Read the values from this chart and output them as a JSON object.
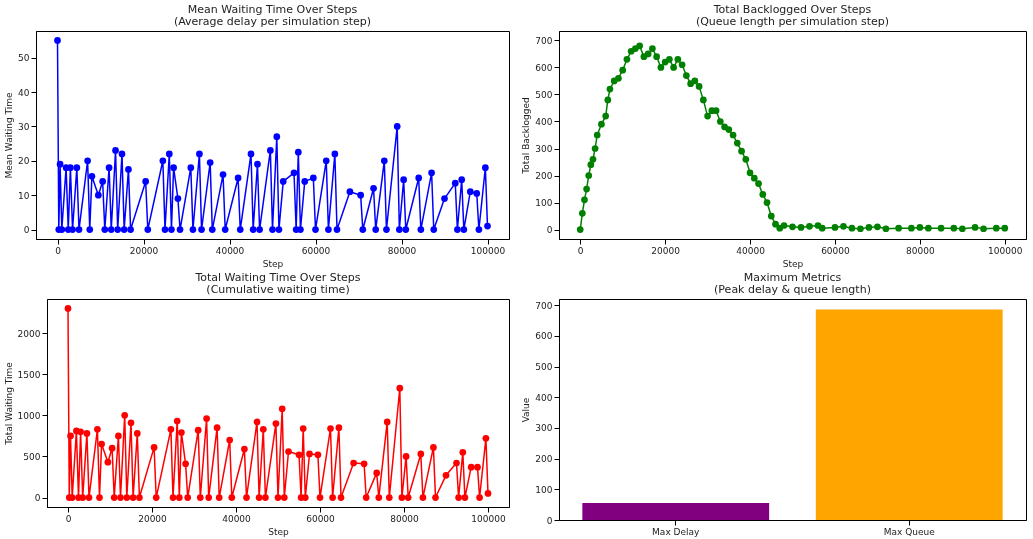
{
  "chart_data": [
    {
      "type": "line",
      "title": "Mean Waiting Time Over Steps",
      "subtitle": "(Average delay per simulation step)",
      "xlabel": "Step",
      "ylabel": "Mean Waiting Time",
      "color": "#0000ff",
      "marker": "circle",
      "line_style": "solid",
      "x": [
        0,
        300,
        600,
        1000,
        2000,
        2500,
        3000,
        3500,
        4500,
        5000,
        7000,
        7500,
        8000,
        9500,
        10500,
        11000,
        12000,
        12500,
        13500,
        14000,
        15000,
        15500,
        16500,
        17000,
        20500,
        21000,
        24500,
        25000,
        26000,
        26500,
        27000,
        28000,
        28500,
        31000,
        31500,
        33000,
        33500,
        35500,
        36000,
        38500,
        39000,
        42000,
        42500,
        45000,
        45500,
        46500,
        47000,
        49500,
        50000,
        51000,
        51500,
        52500,
        55000,
        55500,
        56000,
        56500,
        57500,
        59500,
        60000,
        62500,
        63000,
        64500,
        65000,
        68000,
        70500,
        71000,
        73500,
        74000,
        76000,
        76500,
        79000,
        79500,
        80500,
        81000,
        84000,
        84500,
        87000,
        87500,
        90000,
        92500,
        93000,
        94000,
        94500,
        96000,
        97500,
        98000,
        99500,
        100000
      ],
      "values": [
        55,
        0,
        19,
        0,
        18,
        0,
        18,
        0,
        18,
        0,
        20,
        0,
        15.5,
        10,
        14,
        0,
        18,
        0,
        23,
        0,
        22,
        0,
        17.5,
        0,
        14,
        0,
        20,
        0,
        22,
        0,
        18,
        9,
        0,
        18,
        0,
        22,
        0,
        19.5,
        0,
        16,
        0,
        15,
        0,
        22,
        0,
        19,
        0,
        23,
        0,
        27,
        0,
        14,
        16.5,
        0,
        22.5,
        0,
        14,
        15,
        0,
        20,
        0,
        22,
        0,
        11,
        10,
        0,
        12,
        0,
        20,
        0,
        30,
        0,
        14.5,
        0,
        15,
        0,
        16.5,
        0,
        9,
        13.5,
        0,
        14.5,
        0,
        11,
        10.5,
        0,
        18,
        1
      ],
      "xlim": [
        -5000,
        105000
      ],
      "xticks": [
        0,
        20000,
        40000,
        60000,
        80000,
        100000
      ],
      "ylim": [
        -2.75,
        57.75
      ],
      "yticks": [
        0,
        10,
        20,
        30,
        40,
        50
      ]
    },
    {
      "type": "line",
      "title": "Total Backlogged Over Steps",
      "subtitle": "(Queue length per simulation step)",
      "xlabel": "Step",
      "ylabel": "Total Backlogged",
      "color": "#008000",
      "marker": "circle",
      "line_style": "solid",
      "x": [
        0,
        500,
        1000,
        1500,
        2000,
        2500,
        3000,
        3500,
        4000,
        5000,
        6000,
        6500,
        7000,
        8000,
        9000,
        10000,
        11000,
        12000,
        13000,
        14000,
        15000,
        16000,
        17000,
        18000,
        19000,
        20000,
        21000,
        22000,
        23000,
        24000,
        25000,
        26000,
        27000,
        28000,
        29000,
        30000,
        31000,
        32000,
        33000,
        34000,
        35000,
        36000,
        37000,
        38000,
        39000,
        40000,
        41000,
        42000,
        43000,
        44000,
        45000,
        46000,
        47000,
        48000,
        50000,
        52000,
        54000,
        56000,
        57000,
        60000,
        62000,
        64000,
        66000,
        68000,
        70000,
        72000,
        75000,
        78000,
        80000,
        82000,
        85000,
        88000,
        90000,
        93000,
        95000,
        98000,
        100000
      ],
      "values": [
        0,
        60,
        110,
        150,
        200,
        240,
        260,
        300,
        350,
        390,
        420,
        480,
        520,
        550,
        560,
        590,
        630,
        660,
        670,
        680,
        640,
        650,
        670,
        640,
        600,
        620,
        630,
        600,
        630,
        610,
        570,
        540,
        550,
        530,
        480,
        420,
        440,
        440,
        400,
        380,
        370,
        350,
        320,
        290,
        260,
        210,
        190,
        170,
        130,
        100,
        50,
        20,
        5,
        15,
        10,
        8,
        12,
        15,
        5,
        8,
        12,
        5,
        3,
        8,
        10,
        3,
        5,
        5,
        8,
        5,
        5,
        5,
        3,
        8,
        3,
        5,
        5
      ],
      "xlim": [
        -5000,
        105000
      ],
      "xticks": [
        0,
        20000,
        40000,
        60000,
        80000,
        100000
      ],
      "ylim": [
        -35,
        735
      ],
      "yticks": [
        0,
        100,
        200,
        300,
        400,
        500,
        600,
        700
      ]
    },
    {
      "type": "line",
      "title": "Total Waiting Time Over Steps",
      "subtitle": "(Cumulative waiting time)",
      "xlabel": "Step",
      "ylabel": "Total Waiting Time",
      "color": "#ff0000",
      "marker": "circle",
      "line_style": "solid",
      "x": [
        0,
        300,
        600,
        1000,
        2000,
        2500,
        3000,
        3500,
        4500,
        5000,
        7000,
        7500,
        8000,
        9500,
        10500,
        11000,
        12000,
        12500,
        13500,
        14000,
        15000,
        15500,
        16500,
        17000,
        20500,
        21000,
        24500,
        25000,
        26000,
        26500,
        27000,
        28000,
        28500,
        31000,
        31500,
        33000,
        33500,
        35500,
        36000,
        38500,
        39000,
        42000,
        42500,
        45000,
        45500,
        46500,
        47000,
        49500,
        50000,
        51000,
        51500,
        52500,
        55000,
        55500,
        56000,
        56500,
        57500,
        59500,
        60000,
        62500,
        63000,
        64500,
        65000,
        68000,
        70500,
        71000,
        73500,
        74000,
        76000,
        76500,
        79000,
        79500,
        80500,
        81000,
        84000,
        84500,
        87000,
        87500,
        90000,
        92500,
        93000,
        94000,
        94500,
        96000,
        97500,
        98000,
        99500,
        100000
      ],
      "values": [
        2300,
        0,
        750,
        0,
        810,
        0,
        800,
        0,
        780,
        0,
        830,
        0,
        650,
        430,
        600,
        0,
        750,
        0,
        1000,
        0,
        910,
        0,
        780,
        0,
        610,
        0,
        830,
        0,
        930,
        0,
        790,
        410,
        0,
        820,
        0,
        960,
        0,
        850,
        0,
        700,
        0,
        590,
        0,
        920,
        0,
        830,
        0,
        900,
        0,
        1080,
        0,
        560,
        520,
        0,
        840,
        0,
        530,
        520,
        0,
        840,
        0,
        850,
        0,
        420,
        410,
        0,
        300,
        0,
        920,
        0,
        1330,
        0,
        500,
        0,
        530,
        0,
        610,
        0,
        270,
        420,
        0,
        550,
        0,
        370,
        370,
        0,
        720,
        50
      ],
      "xlim": [
        -5000,
        105000
      ],
      "xticks": [
        0,
        20000,
        40000,
        60000,
        80000,
        100000
      ],
      "ylim": [
        -115,
        2415
      ],
      "yticks": [
        0,
        500,
        1000,
        1500,
        2000
      ]
    },
    {
      "type": "bar",
      "title": "Maximum Metrics",
      "subtitle": "(Peak delay & queue length)",
      "ylabel": "Value",
      "categories": [
        "Max Delay",
        "Max Queue"
      ],
      "values": [
        55,
        686
      ],
      "colors": [
        "#800080",
        "#ffa500"
      ],
      "ylim": [
        0,
        720
      ],
      "yticks": [
        0,
        100,
        200,
        300,
        400,
        500,
        600,
        700
      ]
    }
  ]
}
